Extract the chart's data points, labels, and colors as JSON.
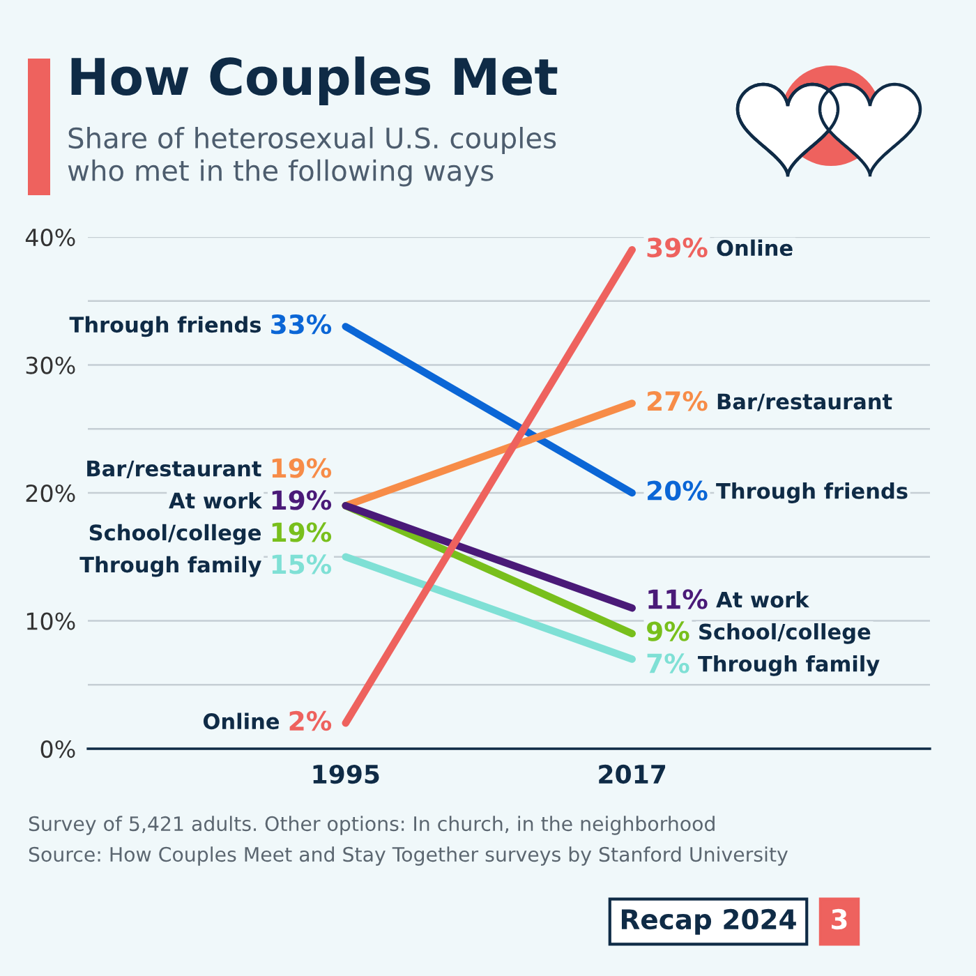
{
  "chart_data": {
    "type": "line",
    "title": "How Couples Met",
    "subtitle": "Share of heterosexual U.S. couples\nwho met in the following ways",
    "categories": [
      "1995",
      "2017"
    ],
    "series": [
      {
        "name": "Through friends",
        "color": "#0b66d6",
        "values": [
          33,
          20
        ],
        "value_labels": [
          "33%",
          "20%"
        ]
      },
      {
        "name": "Bar/restaurant",
        "color": "#f78c48",
        "values": [
          19,
          27
        ],
        "value_labels": [
          "19%",
          "27%"
        ]
      },
      {
        "name": "Through family",
        "color": "#7fe0d5",
        "values": [
          15,
          7
        ],
        "value_labels": [
          "15%",
          "7%"
        ]
      },
      {
        "name": "School/college",
        "color": "#78bf1c",
        "values": [
          19,
          9
        ],
        "value_labels": [
          "19%",
          "9%"
        ]
      },
      {
        "name": "At work",
        "color": "#4a1a78",
        "values": [
          19,
          11
        ],
        "value_labels": [
          "19%",
          "11%"
        ]
      },
      {
        "name": "Online",
        "color": "#ee625e",
        "values": [
          2,
          39
        ],
        "value_labels": [
          "2%",
          "39%"
        ]
      }
    ],
    "ylim": [
      0,
      40
    ],
    "yticks": [
      {
        "value": 0,
        "label": "0%"
      },
      {
        "value": 5,
        "label": null
      },
      {
        "value": 10,
        "label": "10%"
      },
      {
        "value": 15,
        "label": null
      },
      {
        "value": 20,
        "label": "20%"
      },
      {
        "value": 25,
        "label": null
      },
      {
        "value": 30,
        "label": "30%"
      },
      {
        "value": 35,
        "label": null
      },
      {
        "value": 40,
        "label": "40%"
      }
    ],
    "grid": "y",
    "legend": false,
    "marker": "none",
    "line_style": "solid",
    "annotations": [
      "Survey of 5,421 adults. Other options: In church, in the neighborhood",
      "Source: How Couples Meet and Stay Together surveys by Stanford University",
      "Recap 2024",
      "3"
    ]
  }
}
